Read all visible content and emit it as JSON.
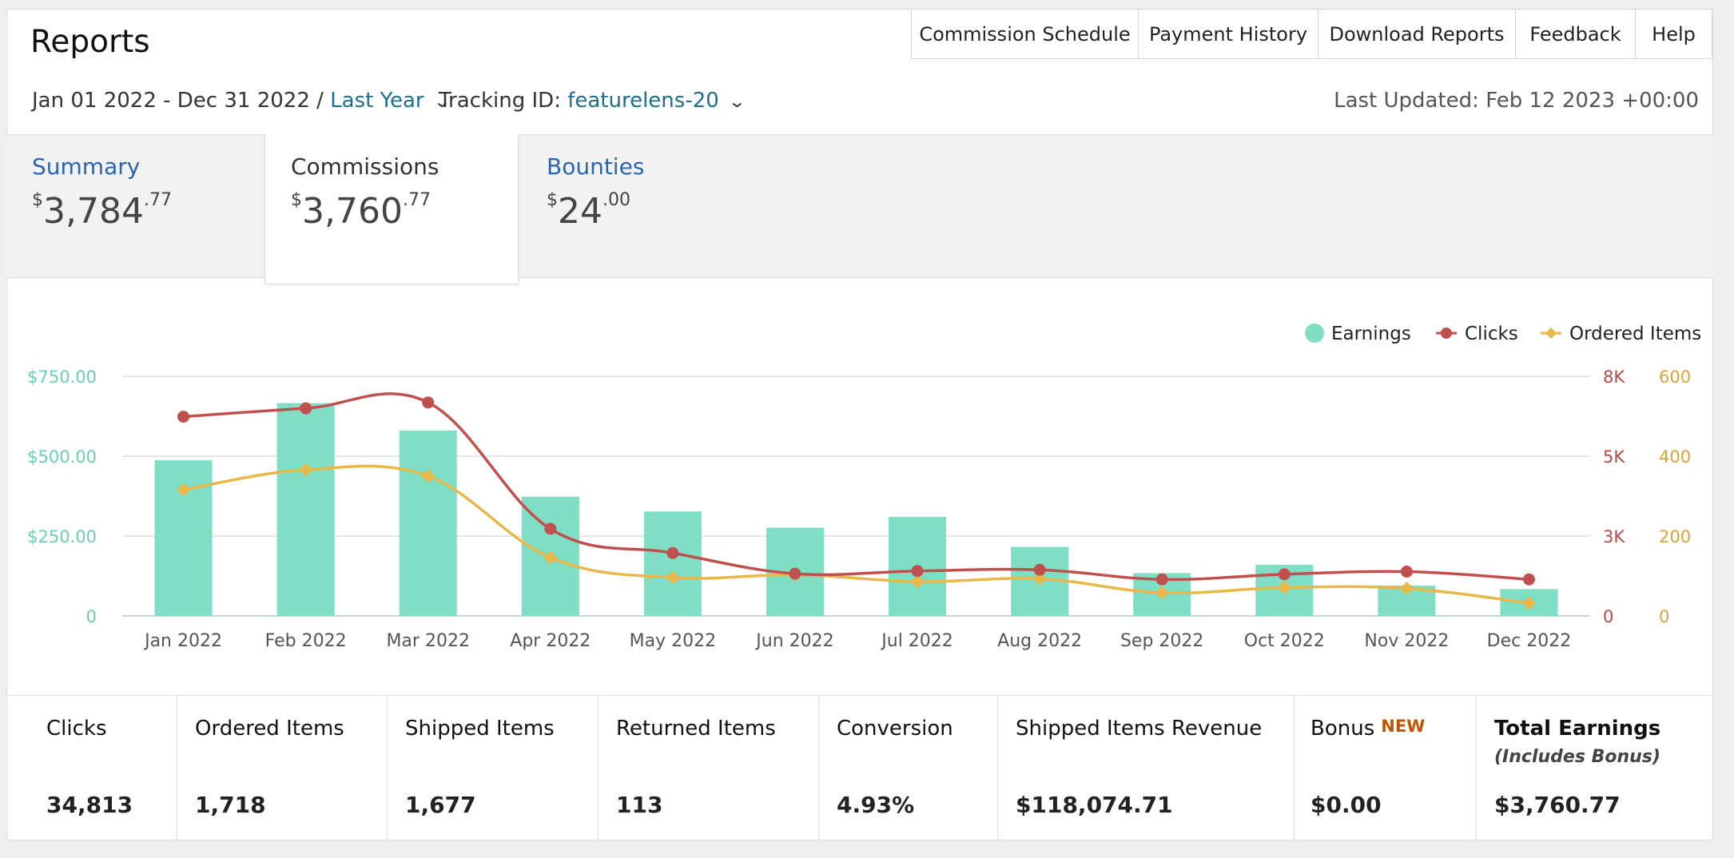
{
  "page": {
    "title": "Reports"
  },
  "top_nav": [
    {
      "label": "Commission Schedule"
    },
    {
      "label": "Payment History"
    },
    {
      "label": "Download Reports"
    },
    {
      "label": "Feedback"
    },
    {
      "label": "Help"
    }
  ],
  "filters": {
    "date_range": "Jan 01 2022 - Dec 31 2022 /",
    "period": "Last Year",
    "tracking_label": "Tracking ID:",
    "tracking_id": "featurelens-20"
  },
  "last_updated": "Last Updated: Feb 12 2023 +00:00",
  "tabs": [
    {
      "label": "Summary",
      "currency": "$",
      "amount": "3,784",
      "cents": ".77"
    },
    {
      "label": "Commissions",
      "currency": "$",
      "amount": "3,760",
      "cents": ".77"
    },
    {
      "label": "Bounties",
      "currency": "$",
      "amount": "24",
      "cents": ".00"
    }
  ],
  "colors": {
    "earnings": "#7fdfc4",
    "clicks": "#c0504d",
    "ordered_items": "#e8b84a",
    "earnings_axis": "#6ccfb0",
    "clicks_axis": "#b54a48",
    "ordered_axis": "#d9a43c"
  },
  "chart_data": {
    "type": "bar",
    "categories": [
      "Jan 2022",
      "Feb 2022",
      "Mar 2022",
      "Apr 2022",
      "May 2022",
      "Jun 2022",
      "Jul 2022",
      "Aug 2022",
      "Sep 2022",
      "Oct 2022",
      "Nov 2022",
      "Dec 2022"
    ],
    "legend_position": "top-right",
    "grid": true,
    "series": [
      {
        "name": "Earnings",
        "type": "bar",
        "axis": "left",
        "values": [
          487,
          666,
          580,
          373,
          327,
          276,
          310,
          216,
          134,
          160,
          95,
          84
        ]
      },
      {
        "name": "Clicks",
        "type": "line",
        "axis": "right-1",
        "values": [
          6650,
          6930,
          7125,
          2910,
          2100,
          1410,
          1500,
          1540,
          1220,
          1390,
          1480,
          1220
        ]
      },
      {
        "name": "Ordered Items",
        "type": "line",
        "axis": "right-2",
        "values": [
          316,
          366,
          350,
          146,
          96,
          103,
          86,
          93,
          58,
          71,
          69,
          32
        ]
      }
    ],
    "axes": {
      "left": {
        "ticks": [
          "0",
          "$250.00",
          "$500.00",
          "$750.00"
        ],
        "values": [
          0,
          250,
          500,
          750
        ],
        "ylim": [
          0,
          750
        ]
      },
      "right_1": {
        "ticks": [
          "0",
          "3K",
          "5K",
          "8K"
        ],
        "values": [
          0,
          2666.67,
          5333.33,
          8000
        ],
        "ylim": [
          0,
          8000
        ]
      },
      "right_2": {
        "ticks": [
          "0",
          "200",
          "400",
          "600"
        ],
        "values": [
          0,
          200,
          400,
          600
        ],
        "ylim": [
          0,
          600
        ]
      }
    }
  },
  "stats": [
    {
      "label": "Clicks",
      "value": "34,813"
    },
    {
      "label": "Ordered Items",
      "value": "1,718"
    },
    {
      "label": "Shipped Items",
      "value": "1,677"
    },
    {
      "label": "Returned Items",
      "value": "113"
    },
    {
      "label": "Conversion",
      "value": "4.93%"
    },
    {
      "label": "Shipped Items Revenue",
      "value": "$118,074.71"
    },
    {
      "label": "Bonus",
      "badge": "NEW",
      "value": "$0.00"
    },
    {
      "label": "Total Earnings",
      "sublabel": "(Includes Bonus)",
      "value": "$3,760.77"
    }
  ]
}
